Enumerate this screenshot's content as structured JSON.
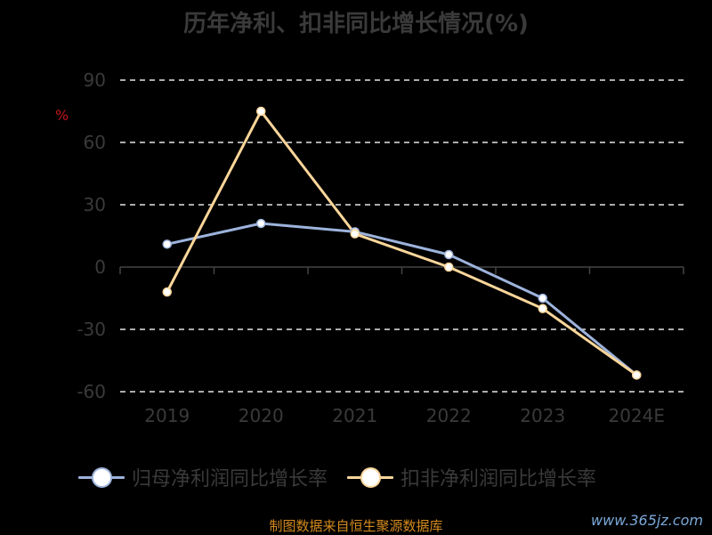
{
  "chart_data": {
    "type": "line",
    "title": "历年净利、扣非同比增长情况(%)",
    "ylabel": "%",
    "categories": [
      "2019",
      "2020",
      "2021",
      "2022",
      "2023",
      "2024E"
    ],
    "ylim": [
      -60,
      90
    ],
    "yticks": [
      90,
      60,
      30,
      0,
      -30,
      -60
    ],
    "grid": true,
    "legend_position": "bottom",
    "series": [
      {
        "name": "归母净利润同比增长率",
        "color": "#9db3dc",
        "values": [
          11,
          21,
          17,
          6,
          -15,
          -52
        ]
      },
      {
        "name": "扣非净利润同比增长率",
        "color": "#fbd69a",
        "values": [
          -12,
          75,
          16,
          0,
          -20,
          -52
        ]
      }
    ]
  },
  "source": "制图数据来自恒生聚源数据库",
  "watermark": "www.365jz.com"
}
